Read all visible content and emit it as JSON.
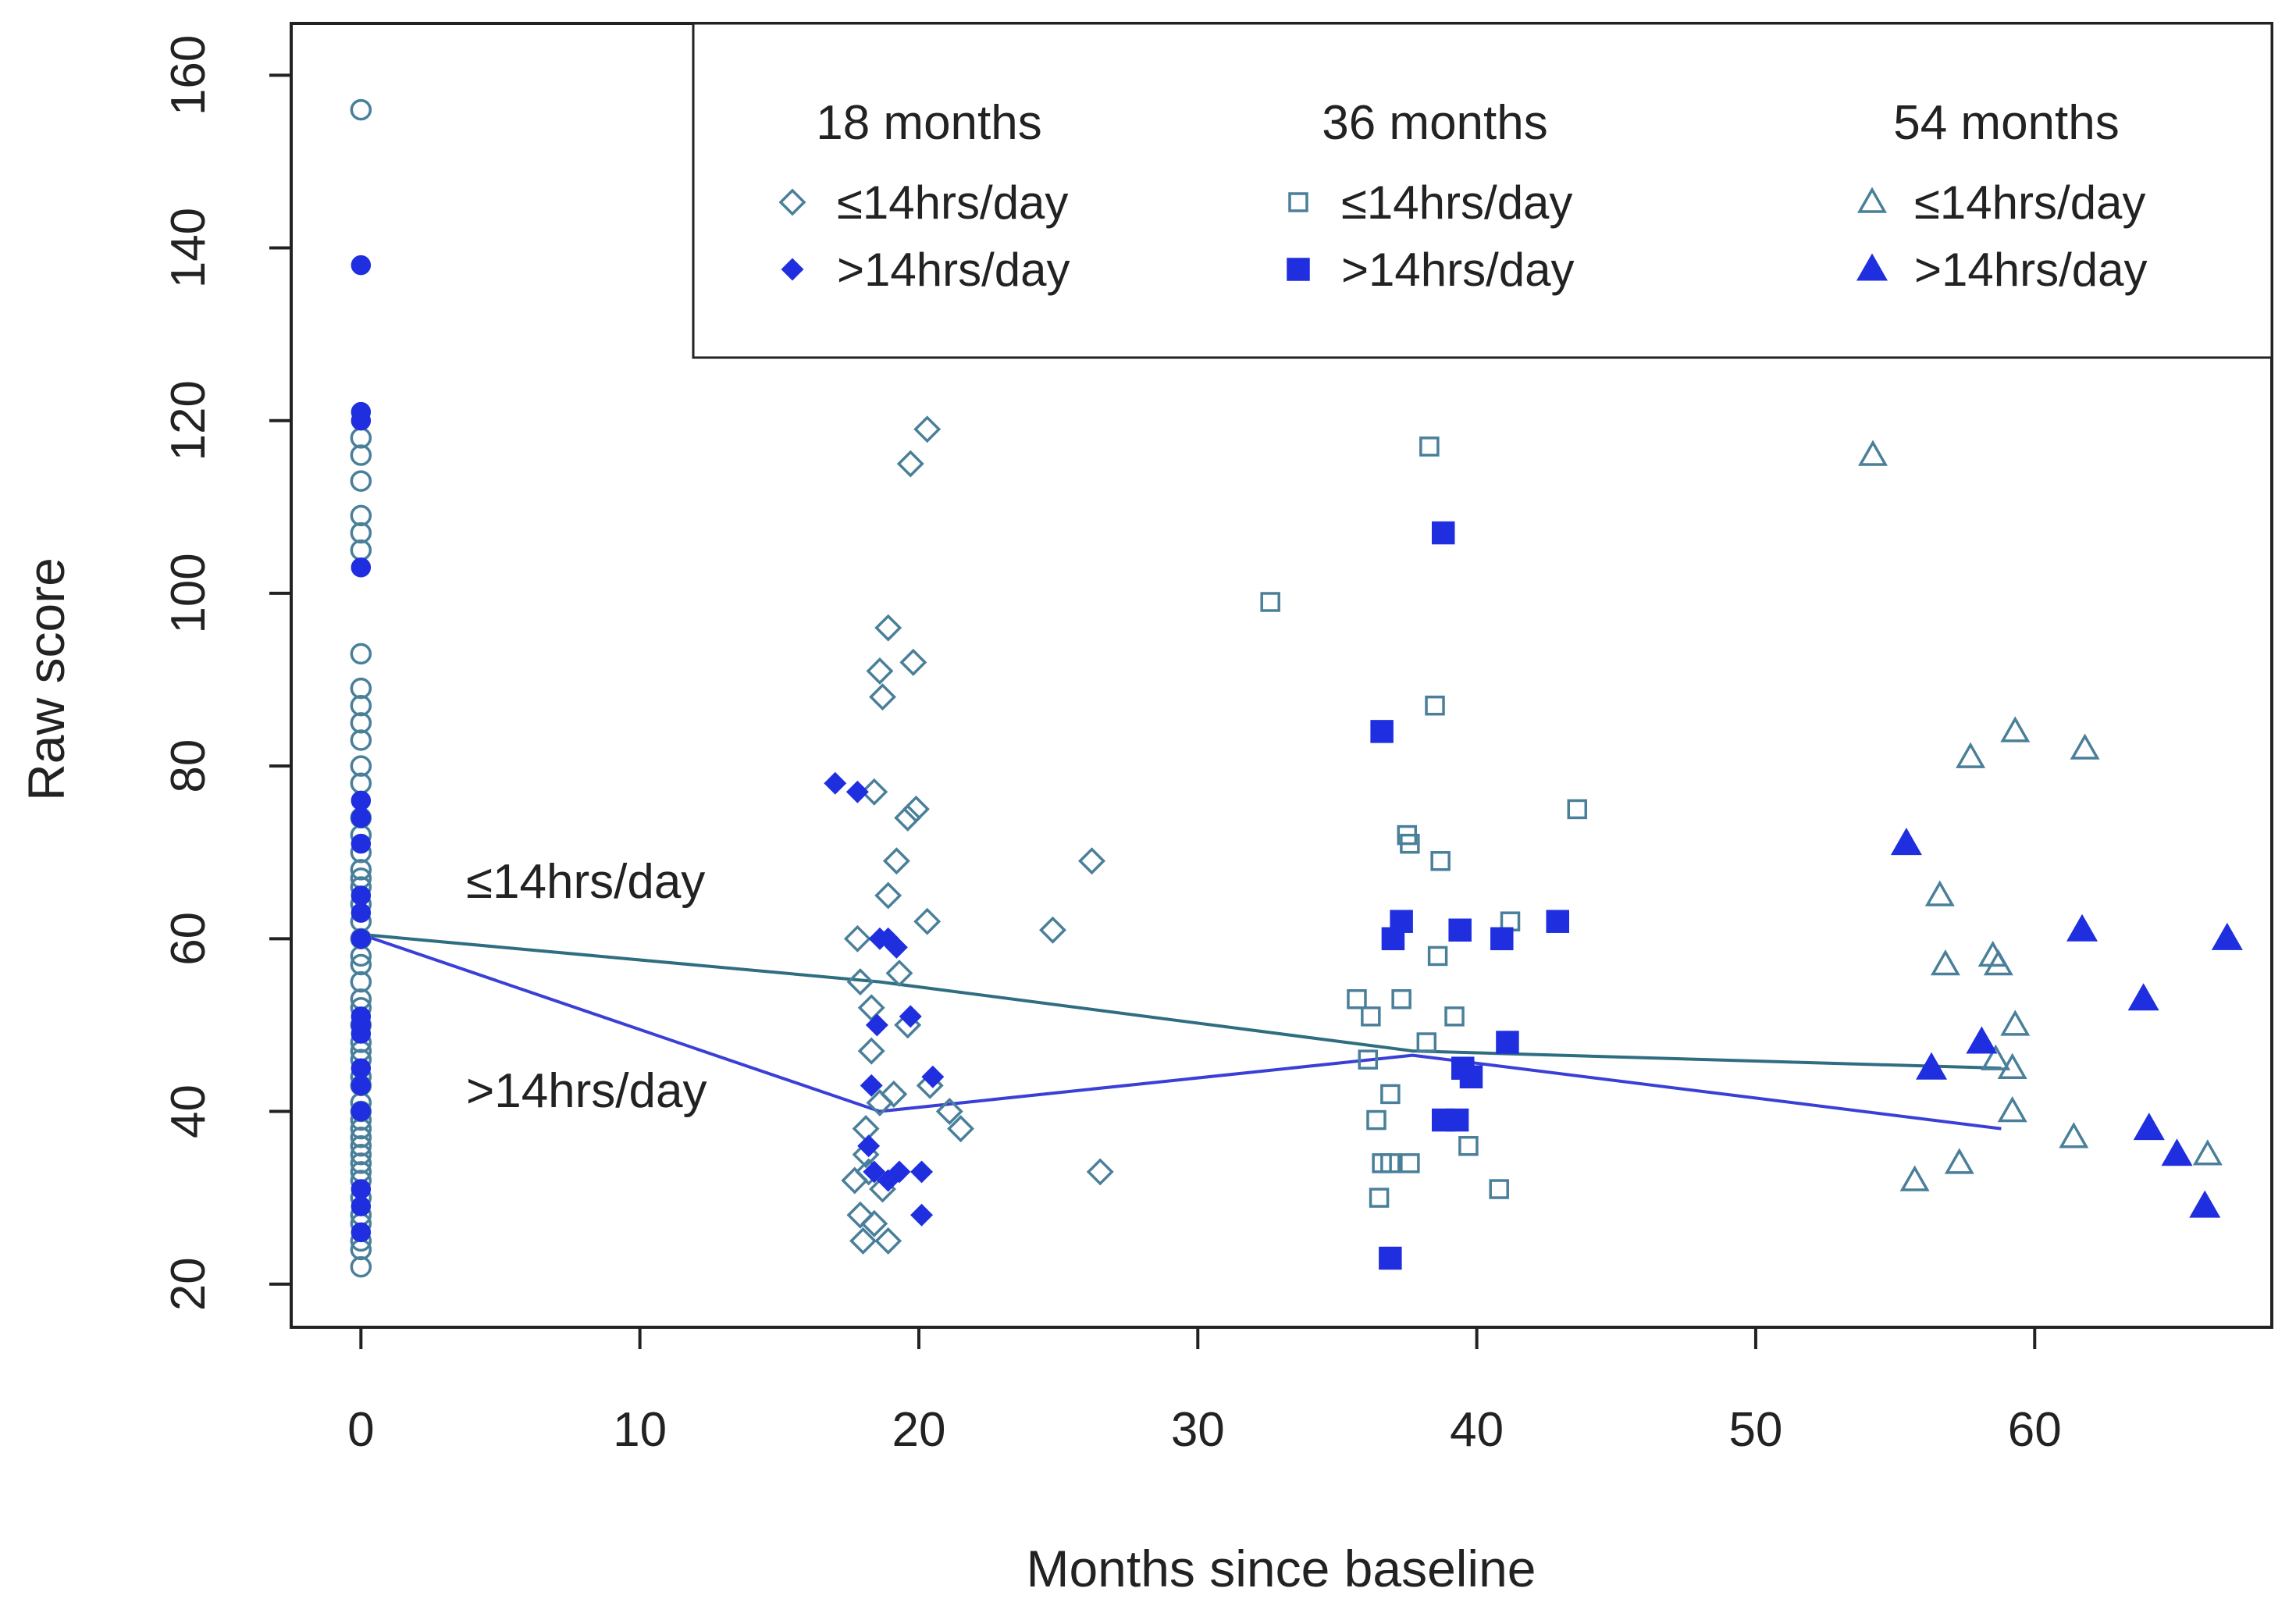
{
  "chart_data": {
    "type": "scatter",
    "title": "",
    "xlabel": "Months since baseline",
    "ylabel": "Raw score",
    "xlim": [
      -2.5,
      68.5
    ],
    "ylim": [
      15,
      166
    ],
    "xticks": [
      0,
      10,
      20,
      30,
      40,
      50,
      60
    ],
    "yticks": [
      20,
      40,
      60,
      80,
      100,
      120,
      140,
      160
    ],
    "grid": false,
    "legend_position": "top-right",
    "colors": {
      "low": "#4a7f9a",
      "high": "#1f2fe0",
      "low_line": "#2f6d80",
      "high_line": "#3a3fd6",
      "legend_header": "#3a3fd6",
      "axis": "#222222"
    },
    "legend": {
      "groups": [
        {
          "header": "18 months",
          "low": "≤14hrs/day",
          "high": ">14hrs/day",
          "marker": "diamond"
        },
        {
          "header": "36 months",
          "low": "≤14hrs/day",
          "high": ">14hrs/day",
          "marker": "square"
        },
        {
          "header": "54 months",
          "low": "≤14hrs/day",
          "high": ">14hrs/day",
          "marker": "triangle"
        }
      ]
    },
    "series": [
      {
        "name": "Baseline ≤14hrs/day",
        "marker": "circle",
        "filled": false,
        "color_key": "low",
        "x": [
          0,
          0,
          0,
          0,
          0,
          0,
          0,
          0,
          0,
          0,
          0,
          0,
          0,
          0,
          0,
          0,
          0,
          0,
          0,
          0,
          0,
          0,
          0,
          0,
          0,
          0,
          0,
          0,
          0,
          0,
          0,
          0,
          0,
          0,
          0,
          0,
          0,
          0,
          0,
          0,
          0,
          0,
          0,
          0,
          0,
          0,
          0,
          0,
          0,
          0
        ],
        "y": [
          156,
          118,
          116,
          113,
          109,
          107,
          105,
          93,
          89,
          87,
          85,
          83,
          80,
          78,
          74,
          72,
          70,
          68,
          67,
          66,
          64,
          62,
          60,
          58,
          57,
          55,
          53,
          52,
          50,
          48,
          47,
          46,
          44,
          43,
          41,
          40,
          39,
          38,
          37,
          36,
          35,
          34,
          33,
          32,
          30,
          28,
          27,
          25,
          24,
          22
        ]
      },
      {
        "name": "Baseline >14hrs/day",
        "marker": "circle",
        "filled": true,
        "color_key": "high",
        "x": [
          0,
          0,
          0,
          0,
          0,
          0,
          0,
          0,
          0,
          0,
          0,
          0,
          0,
          0,
          0,
          0,
          0,
          0,
          0
        ],
        "y": [
          138,
          121,
          120,
          103,
          76,
          74,
          71,
          65,
          63,
          60,
          51,
          50,
          49,
          45,
          43,
          40,
          31,
          29,
          26
        ]
      },
      {
        "name": "18 months ≤14hrs/day",
        "marker": "diamond",
        "filled": false,
        "color_key": "low",
        "x": [
          20.3,
          19.7,
          18.9,
          18.6,
          19.8,
          18.7,
          18.4,
          19.9,
          19.6,
          19.2,
          18.9,
          20.3,
          17.8,
          17.9,
          18.3,
          19.3,
          18.3,
          19.6,
          18.1,
          18.6,
          19.1,
          20.4,
          21.1,
          21.5,
          18.1,
          17.7,
          18.2,
          17.9,
          18.4,
          18.9,
          18.0,
          18.7,
          24.8,
          26.2,
          26.5
        ],
        "y": [
          119,
          115,
          96,
          91,
          92,
          88,
          77,
          75,
          74,
          69,
          65,
          62,
          60,
          55,
          52,
          56,
          47,
          50,
          38,
          41,
          42,
          43,
          40,
          38,
          35,
          32,
          33,
          28,
          27,
          25,
          25,
          31,
          61,
          69,
          33
        ]
      },
      {
        "name": "18 months >14hrs/day",
        "marker": "diamond",
        "filled": true,
        "color_key": "high",
        "x": [
          17.0,
          17.8,
          18.6,
          18.9,
          19.2,
          18.5,
          19.7,
          18.3,
          18.2,
          18.4,
          18.9,
          19.3,
          20.1,
          20.5,
          20.1
        ],
        "y": [
          78,
          77,
          60,
          60,
          59,
          50,
          51,
          43,
          36,
          33,
          32,
          33,
          33,
          44,
          28
        ]
      },
      {
        "name": "36 months ≤14hrs/day",
        "marker": "square",
        "filled": false,
        "color_key": "low",
        "x": [
          38.3,
          32.6,
          38.5,
          37.5,
          37.6,
          38.7,
          43.6,
          41.2,
          38.6,
          35.7,
          36.2,
          37.3,
          39.2,
          38.2,
          36.1,
          36.4,
          36.9,
          36.6,
          36.9,
          37.6,
          39.7,
          40.8,
          36.5
        ],
        "y": [
          117,
          99,
          87,
          72,
          71,
          69,
          75,
          62,
          58,
          53,
          51,
          53,
          51,
          48,
          46,
          39,
          42,
          34,
          34,
          34,
          36,
          31,
          30
        ]
      },
      {
        "name": "36 months >14hrs/day",
        "marker": "square",
        "filled": true,
        "color_key": "high",
        "x": [
          38.8,
          36.6,
          37.3,
          37.0,
          39.4,
          40.9,
          42.9,
          41.1,
          39.5,
          39.8,
          38.8,
          39.3,
          36.9
        ],
        "y": [
          107,
          84,
          62,
          60,
          61,
          60,
          62,
          48,
          45,
          44,
          39,
          39,
          23
        ]
      },
      {
        "name": "54 months ≤14hrs/day",
        "marker": "triangle",
        "filled": false,
        "color_key": "low",
        "x": [
          54.2,
          59.3,
          57.7,
          61.8,
          56.6,
          56.8,
          58.5,
          58.7,
          59.3,
          58.6,
          59.2,
          59.2,
          61.4,
          55.7,
          57.3,
          66.2
        ],
        "y": [
          116,
          84,
          81,
          82,
          65,
          57,
          58,
          57,
          50,
          46,
          45,
          40,
          37,
          32,
          34,
          35
        ]
      },
      {
        "name": "54 months >14hrs/day",
        "marker": "triangle",
        "filled": true,
        "color_key": "high",
        "x": [
          55.4,
          61.7,
          66.9,
          63.9,
          58.1,
          56.3,
          64.1,
          65.1,
          66.1
        ],
        "y": [
          71,
          61,
          60,
          53,
          48,
          45,
          38,
          35,
          29
        ]
      }
    ],
    "lines": [
      {
        "name": "≤14hrs/day",
        "color_key": "low_line",
        "x": [
          0,
          18.6,
          37.7,
          58.8
        ],
        "y": [
          60.5,
          55,
          47,
          45
        ]
      },
      {
        "name": ">14hrs/day",
        "color_key": "high_line",
        "x": [
          0,
          18.6,
          37.7,
          58.8
        ],
        "y": [
          60.5,
          40,
          46.5,
          38
        ]
      }
    ],
    "annotations": [
      {
        "text": "≤14hrs/day",
        "color_key": "low_line"
      },
      {
        "text": ">14hrs/day",
        "color_key": "high_line"
      }
    ]
  }
}
